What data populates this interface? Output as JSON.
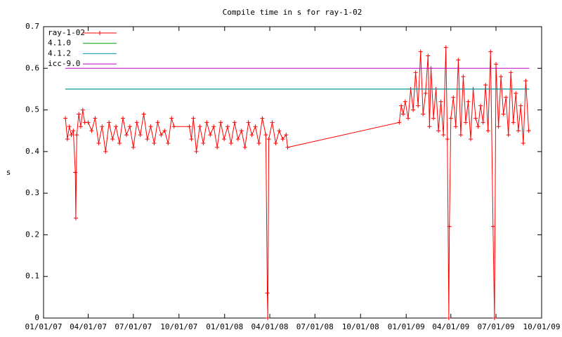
{
  "chart_data": {
    "type": "line",
    "title": "Compile time in s for ray-1-02",
    "y_label": "s",
    "xlim": [
      "2007-01-01",
      "2009-10-01"
    ],
    "xticks": [
      {
        "value": "2007-01-01",
        "label": "01/01/07"
      },
      {
        "value": "2007-04-01",
        "label": "04/01/07"
      },
      {
        "value": "2007-07-01",
        "label": "07/01/07"
      },
      {
        "value": "2007-10-01",
        "label": "10/01/07"
      },
      {
        "value": "2008-01-01",
        "label": "01/01/08"
      },
      {
        "value": "2008-04-01",
        "label": "04/01/08"
      },
      {
        "value": "2008-07-01",
        "label": "07/01/08"
      },
      {
        "value": "2008-10-01",
        "label": "10/01/08"
      },
      {
        "value": "2009-01-01",
        "label": "01/01/09"
      },
      {
        "value": "2009-04-01",
        "label": "04/01/09"
      },
      {
        "value": "2009-07-01",
        "label": "07/01/09"
      },
      {
        "value": "2009-10-01",
        "label": "10/01/09"
      }
    ],
    "ylim": [
      0,
      0.7
    ],
    "yticks": [
      0,
      0.1,
      0.2,
      0.3,
      0.4,
      0.5,
      0.6,
      0.7
    ],
    "legend": "top-left",
    "series": [
      {
        "name": "ray-1-02",
        "color": "#ff0000",
        "points": true,
        "x": [
          "2007-02-14",
          "2007-02-18",
          "2007-02-22",
          "2007-02-26",
          "2007-03-02",
          "2007-03-06",
          "2007-03-07",
          "2007-03-09",
          "2007-03-13",
          "2007-03-17",
          "2007-03-21",
          "2007-03-25",
          "2007-04-01",
          "2007-04-08",
          "2007-04-15",
          "2007-04-22",
          "2007-04-29",
          "2007-05-06",
          "2007-05-13",
          "2007-05-20",
          "2007-05-27",
          "2007-06-03",
          "2007-06-10",
          "2007-06-17",
          "2007-06-24",
          "2007-07-01",
          "2007-07-08",
          "2007-07-15",
          "2007-07-22",
          "2007-07-29",
          "2007-08-05",
          "2007-08-12",
          "2007-08-19",
          "2007-08-26",
          "2007-09-02",
          "2007-09-09",
          "2007-09-16",
          "2007-09-21",
          "2007-10-22",
          "2007-10-26",
          "2007-10-30",
          "2007-11-05",
          "2007-11-12",
          "2007-11-19",
          "2007-11-26",
          "2007-12-03",
          "2007-12-10",
          "2007-12-17",
          "2007-12-24",
          "2007-12-31",
          "2008-01-07",
          "2008-01-14",
          "2008-01-21",
          "2008-01-28",
          "2008-02-04",
          "2008-02-11",
          "2008-02-18",
          "2008-02-25",
          "2008-03-03",
          "2008-03-10",
          "2008-03-17",
          "2008-03-24",
          "2008-03-27",
          "2008-03-28",
          "2008-03-30",
          "2008-04-06",
          "2008-04-13",
          "2008-04-20",
          "2008-04-27",
          "2008-05-04",
          "2008-05-07",
          "2008-12-18",
          "2008-12-22",
          "2008-12-26",
          "2008-12-30",
          "2009-01-05",
          "2009-01-10",
          "2009-01-15",
          "2009-01-20",
          "2009-01-25",
          "2009-01-30",
          "2009-02-04",
          "2009-02-09",
          "2009-02-14",
          "2009-02-17",
          "2009-02-20",
          "2009-02-25",
          "2009-03-02",
          "2009-03-07",
          "2009-03-12",
          "2009-03-17",
          "2009-03-22",
          "2009-03-25",
          "2009-03-28",
          "2009-03-29",
          "2009-04-01",
          "2009-04-06",
          "2009-04-11",
          "2009-04-16",
          "2009-04-21",
          "2009-04-26",
          "2009-05-01",
          "2009-05-06",
          "2009-05-11",
          "2009-05-16",
          "2009-05-21",
          "2009-05-26",
          "2009-05-31",
          "2009-06-05",
          "2009-06-10",
          "2009-06-15",
          "2009-06-20",
          "2009-06-25",
          "2009-06-28",
          "2009-07-01",
          "2009-07-06",
          "2009-07-11",
          "2009-07-16",
          "2009-07-21",
          "2009-07-26",
          "2009-07-31",
          "2009-08-05",
          "2009-08-10",
          "2009-08-15",
          "2009-08-20",
          "2009-08-25",
          "2009-08-30",
          "2009-09-05"
        ],
        "values": [
          0.48,
          0.43,
          0.46,
          0.44,
          0.45,
          0.35,
          0.24,
          0.44,
          0.49,
          0.46,
          0.5,
          0.47,
          0.47,
          0.45,
          0.48,
          0.42,
          0.46,
          0.4,
          0.47,
          0.43,
          0.46,
          0.42,
          0.48,
          0.44,
          0.46,
          0.41,
          0.47,
          0.44,
          0.49,
          0.43,
          0.46,
          0.42,
          0.47,
          0.44,
          0.45,
          0.42,
          0.48,
          0.46,
          0.46,
          0.43,
          0.48,
          0.4,
          0.46,
          0.42,
          0.47,
          0.44,
          0.46,
          0.41,
          0.47,
          0.43,
          0.46,
          0.42,
          0.47,
          0.43,
          0.45,
          0.41,
          0.47,
          0.44,
          0.46,
          0.42,
          0.48,
          0.44,
          0.06,
          0,
          0.43,
          0.47,
          0.42,
          0.45,
          0.43,
          0.44,
          0.41,
          0.47,
          0.51,
          0.49,
          0.52,
          0.48,
          0.55,
          0.5,
          0.59,
          0.51,
          0.64,
          0.49,
          0.54,
          0.63,
          0.46,
          0.6,
          0.48,
          0.55,
          0.45,
          0.52,
          0.44,
          0.65,
          0.43,
          0,
          0.22,
          0.48,
          0.53,
          0.46,
          0.62,
          0.44,
          0.58,
          0.47,
          0.52,
          0.43,
          0.55,
          0.48,
          0.46,
          0.51,
          0.47,
          0.56,
          0.45,
          0.64,
          0.22,
          0,
          0.61,
          0.46,
          0.58,
          0.49,
          0.53,
          0.44,
          0.59,
          0.47,
          0.54,
          0.45,
          0.51,
          0.42,
          0.57,
          0.45
        ]
      },
      {
        "name": "4.1.0",
        "color": "#00a000",
        "x": [
          "2007-02-14",
          "2009-09-06"
        ],
        "values": [
          0.55,
          0.55
        ]
      },
      {
        "name": "4.1.2",
        "color": "#0090b0",
        "x": [
          "2007-02-14",
          "2009-09-06"
        ],
        "values": [
          0.55,
          0.55
        ]
      },
      {
        "name": "icc-9.0",
        "color": "#c000c0",
        "x": [
          "2007-02-14",
          "2009-09-06"
        ],
        "values": [
          0.6,
          0.6
        ]
      }
    ]
  }
}
